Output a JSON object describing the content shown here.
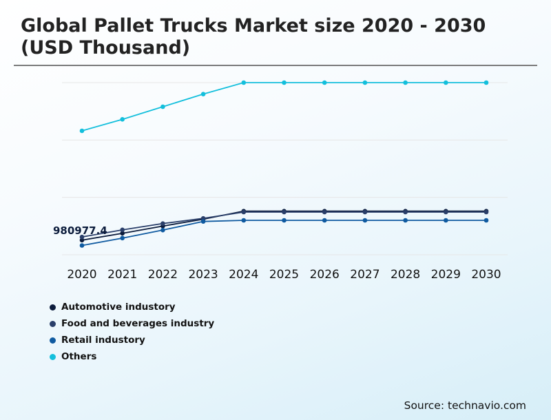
{
  "title_line1": "Global Pallet Trucks Market size 2020 - 2030",
  "title_line2": "(USD Thousand)",
  "source": "Source: technavio.com",
  "chart_data": {
    "type": "line",
    "title": "Global Pallet Trucks Market size 2020 - 2030 (USD Thousand)",
    "categories": [
      "2020",
      "2021",
      "2022",
      "2023",
      "2024",
      "2025",
      "2026",
      "2027",
      "2028",
      "2029",
      "2030"
    ],
    "ylim": [
      900000,
      2400000
    ],
    "grid": true,
    "legend_position": "bottom-left",
    "series": [
      {
        "name": "Automotive industory",
        "color": "#0c1c3c",
        "values": [
          1027000,
          1087000,
          1150000,
          1210000,
          1280000,
          1280000,
          1280000,
          1280000,
          1280000,
          1280000,
          1280000
        ]
      },
      {
        "name": "Food and beverages industry",
        "color": "#2a3f6a",
        "values": [
          1055000,
          1117000,
          1172000,
          1217000,
          1272000,
          1272000,
          1272000,
          1272000,
          1272000,
          1272000,
          1272000
        ]
      },
      {
        "name": "Retail industory",
        "color": "#0f5aa0",
        "values": [
          980977.4,
          1045000,
          1115000,
          1190000,
          1200000,
          1200000,
          1200000,
          1200000,
          1200000,
          1200000,
          1200000
        ]
      },
      {
        "name": "Others",
        "color": "#13bfdc",
        "values": [
          1980000,
          2080000,
          2190000,
          2300000,
          2400000,
          2400000,
          2400000,
          2400000,
          2400000,
          2400000,
          2400000
        ]
      }
    ],
    "annotation": "980977.4"
  }
}
